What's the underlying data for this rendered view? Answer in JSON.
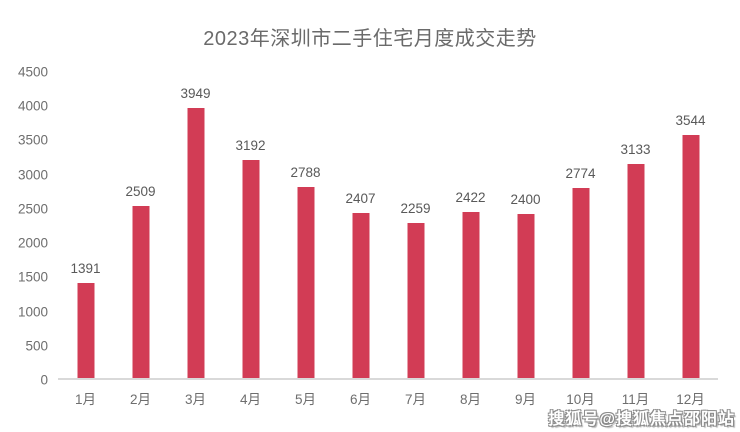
{
  "title": "2023年深圳市二手住宅月度成交走势",
  "watermark": "搜狐号@搜狐焦点邵阳站",
  "colors": {
    "bar": "#d23c55",
    "title": "#6a6a6a",
    "value_label": "#595959",
    "axis_label": "#6e6e6e",
    "axis_line": "#d9d9d9",
    "watermark_fill": "#ffffff",
    "watermark_outline": "#8c8c8c"
  },
  "chart_data": {
    "type": "bar",
    "title": "2023年深圳市二手住宅月度成交走势",
    "categories": [
      "1月",
      "2月",
      "3月",
      "4月",
      "5月",
      "6月",
      "7月",
      "8月",
      "9月",
      "10月",
      "11月",
      "12月"
    ],
    "values": [
      1391,
      2509,
      3949,
      3192,
      2788,
      2407,
      2259,
      2422,
      2400,
      2774,
      3133,
      3544
    ],
    "xlabel": "",
    "ylabel": "",
    "ylim": [
      0,
      4500
    ],
    "yticks": [
      0,
      500,
      1000,
      1500,
      2000,
      2500,
      3000,
      3500,
      4000,
      4500
    ],
    "grid": false,
    "legend": null,
    "data_labels": true
  }
}
